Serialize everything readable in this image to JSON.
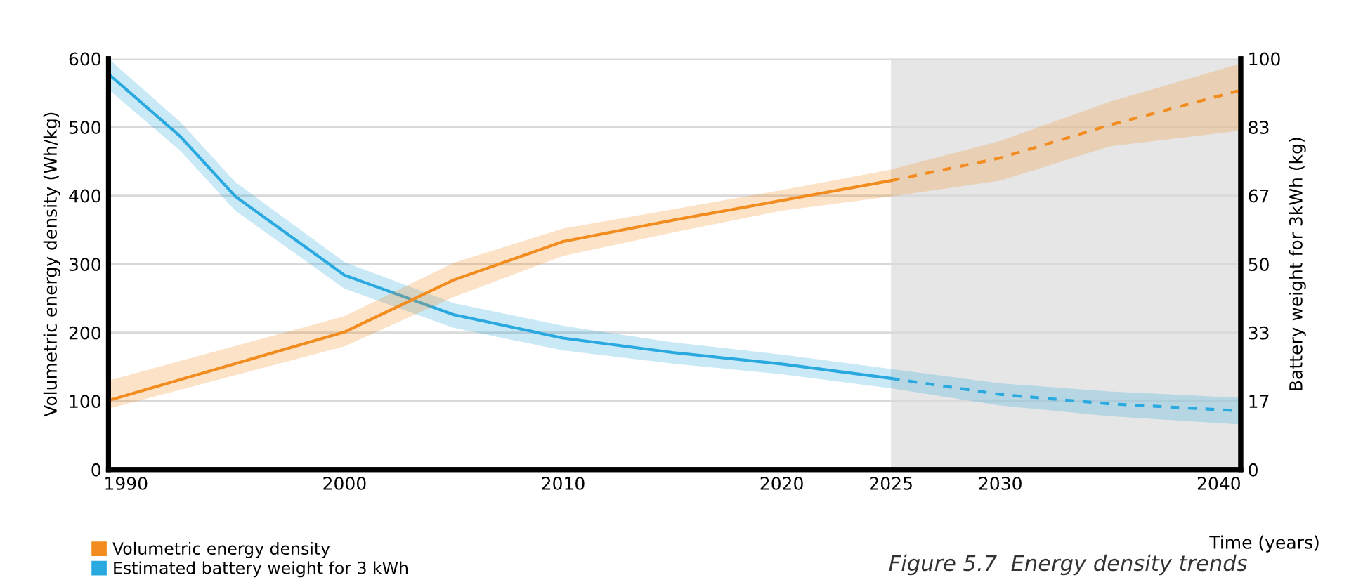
{
  "chart_data": {
    "type": "line",
    "xlabel": "Time (years)",
    "ylabel": "Volumetric energy density (Wh/kg)",
    "y2label": "Battery weight for 3kWh (kg)",
    "xlim": [
      1989.2,
      2041
    ],
    "xticks": [
      1990,
      2000,
      2010,
      2020,
      2025,
      2030,
      2040
    ],
    "ylim": [
      0,
      600
    ],
    "yticks": [
      0,
      100,
      200,
      300,
      400,
      500,
      600
    ],
    "y2lim": [
      0,
      100
    ],
    "y2ticks": [
      0,
      {
        "value": 16.67,
        "label": "17"
      },
      {
        "value": 33.33,
        "label": "33"
      },
      50,
      {
        "value": 66.67,
        "label": "67"
      },
      {
        "value": 83.33,
        "label": "83"
      },
      100
    ],
    "grid": true,
    "legend": "bottom left",
    "marker": "none",
    "bands": [
      {
        "axis": "x",
        "from": 2025,
        "to": 2041,
        "color": "#e6e6e6"
      }
    ],
    "series": [
      {
        "name": "Volumetric energy density",
        "color": "#f28c1e",
        "line_style": "solid",
        "x": [
          1989.2,
          2000,
          2005,
          2010,
          2015,
          2020,
          2025
        ],
        "values": [
          101,
          201,
          277,
          333,
          364,
          393,
          422
        ],
        "lower": [
          89,
          180,
          252,
          312,
          346,
          378,
          399
        ],
        "upper": [
          130,
          224,
          302,
          352,
          380,
          408,
          438
        ]
      },
      {
        "color": "#f28c1e",
        "line_style": "dashed",
        "x": [
          2025,
          2030,
          2035,
          2041
        ],
        "values": [
          422,
          455,
          503,
          554
        ],
        "lower": [
          399,
          422,
          472,
          495
        ],
        "upper": [
          438,
          480,
          537,
          593
        ]
      },
      {
        "name": "Estimated battery weight for 3 kWh",
        "color": "#29a9e0",
        "axis": "y2",
        "line_style": "solid",
        "x": [
          1989.2,
          1992.5,
          1995,
          2000,
          2005,
          2010,
          2015,
          2020,
          2025
        ],
        "values": [
          96.3,
          81,
          66.5,
          47.3,
          37.7,
          32,
          28.5,
          25.7,
          22.2
        ],
        "lower": [
          92.5,
          77.5,
          63,
          44,
          34.5,
          29,
          25.8,
          23.2,
          19.8
        ],
        "upper": [
          100,
          84.5,
          70,
          50.5,
          40.5,
          35,
          31,
          28,
          24.5
        ]
      },
      {
        "color": "#29a9e0",
        "axis": "y2",
        "line_style": "dashed",
        "x": [
          2025,
          2030,
          2035,
          2041
        ],
        "values": [
          22.2,
          18.3,
          16,
          14.3
        ],
        "lower": [
          19.8,
          15.6,
          13,
          11
        ],
        "upper": [
          24.5,
          21,
          19,
          17.5
        ]
      }
    ],
    "annotations": [
      "Figure 5.7  Energy density trends"
    ]
  }
}
